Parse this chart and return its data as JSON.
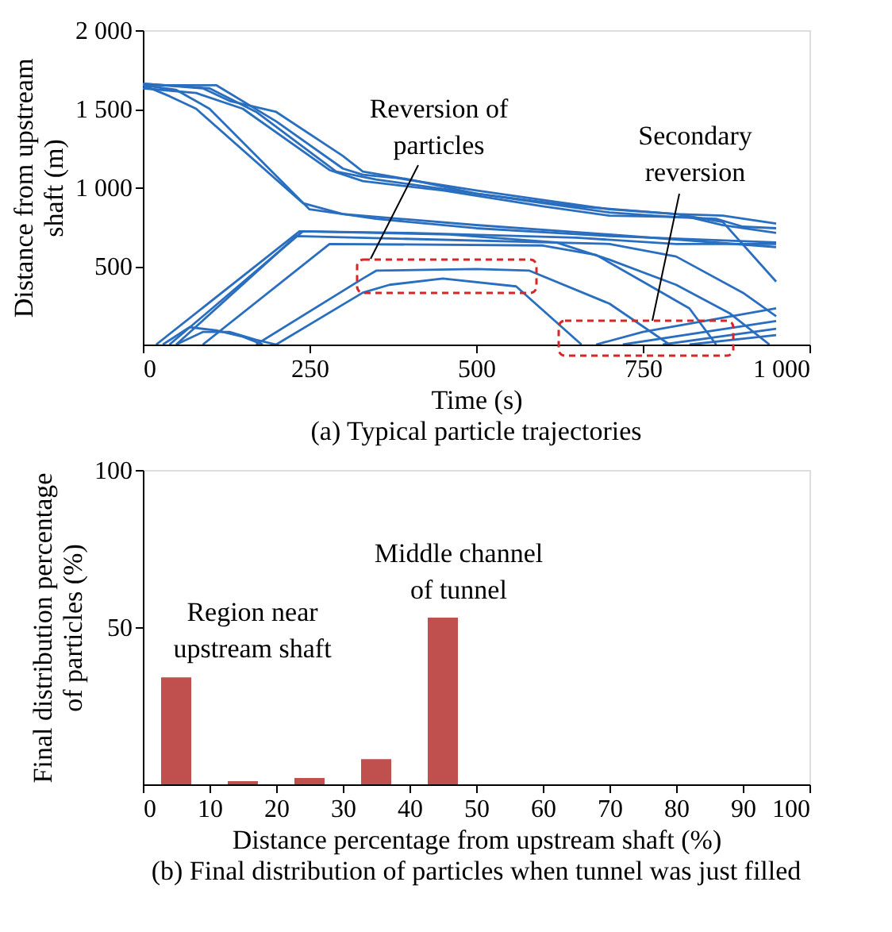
{
  "chart_data": [
    {
      "type": "line",
      "title": "(a) Typical particle trajectories",
      "xlabel": "Time (s)",
      "ylabel": "Distance from upstream\nshaft (m)",
      "xlim": [
        0,
        1000
      ],
      "xticks": [
        0,
        250,
        500,
        750,
        {
          "value": 1000,
          "label": "1 000"
        }
      ],
      "ylim": [
        0,
        2000
      ],
      "yticks": [
        {
          "value": 500,
          "label": "500"
        },
        {
          "value": 1000,
          "label": "1 000"
        },
        {
          "value": 1500,
          "label": "1 500"
        },
        {
          "value": 2000,
          "label": "2 000"
        }
      ],
      "annotations": [
        "Reversion of\nparticles",
        "Secondary\nreversion"
      ],
      "series": [
        {
          "color": "#2a6ebf",
          "x": [
            0,
            110,
            200,
            300,
            330,
            380,
            500,
            600,
            700,
            800,
            870,
            950
          ],
          "values": [
            1650,
            1650,
            1420,
            1120,
            1080,
            1060,
            980,
            920,
            860,
            830,
            820,
            770
          ]
        },
        {
          "color": "#2a6ebf",
          "x": [
            0,
            90,
            130,
            200,
            300,
            330,
            400,
            500,
            600,
            700,
            800,
            860,
            900,
            950
          ],
          "values": [
            1660,
            1630,
            1550,
            1480,
            1200,
            1100,
            1050,
            960,
            900,
            840,
            810,
            800,
            750,
            740
          ]
        },
        {
          "color": "#2a6ebf",
          "x": [
            0,
            80,
            150,
            280,
            330,
            450,
            600,
            700,
            820,
            870,
            950
          ],
          "values": [
            1630,
            1600,
            1500,
            1110,
            1040,
            980,
            880,
            820,
            810,
            760,
            710
          ]
        },
        {
          "color": "#2a6ebf",
          "x": [
            0,
            100,
            170,
            290,
            350,
            500,
            650,
            800,
            870,
            950
          ],
          "values": [
            1660,
            1630,
            1480,
            1100,
            1050,
            960,
            880,
            830,
            780,
            400
          ]
        },
        {
          "color": "#2a6ebf",
          "x": [
            0,
            50,
            100,
            250,
            350,
            500,
            700,
            950
          ],
          "values": [
            1650,
            1620,
            1500,
            860,
            800,
            740,
            690,
            650
          ]
        },
        {
          "color": "#2a6ebf",
          "x": [
            0,
            40,
            80,
            240,
            300,
            500,
            700,
            950
          ],
          "values": [
            1650,
            1580,
            1500,
            900,
            830,
            760,
            700,
            620
          ]
        },
        {
          "color": "#2a6ebf",
          "x": [
            20,
            235,
            400,
            650,
            800,
            950
          ],
          "values": [
            0,
            720,
            710,
            680,
            640,
            640
          ]
        },
        {
          "color": "#2a6ebf",
          "x": [
            40,
            240,
            460,
            620,
            700,
            800,
            880,
            940
          ],
          "values": [
            0,
            720,
            700,
            650,
            540,
            380,
            200,
            0
          ]
        },
        {
          "color": "#2a6ebf",
          "x": [
            50,
            230,
            700,
            800,
            900,
            950
          ],
          "values": [
            0,
            690,
            640,
            560,
            330,
            180
          ]
        },
        {
          "color": "#2a6ebf",
          "x": [
            90,
            280,
            600,
            680,
            750,
            820,
            860
          ],
          "values": [
            0,
            640,
            630,
            570,
            400,
            230,
            0
          ]
        },
        {
          "color": "#2a6ebf",
          "x": [
            170,
            330,
            350,
            500,
            580,
            700,
            790
          ],
          "values": [
            0,
            420,
            470,
            480,
            470,
            260,
            0
          ]
        },
        {
          "color": "#2a6ebf",
          "x": [
            200,
            330,
            370,
            450,
            560,
            658
          ],
          "values": [
            0,
            330,
            380,
            420,
            370,
            0
          ]
        },
        {
          "color": "#2a6ebf",
          "x": [
            680,
            750,
            950
          ],
          "values": [
            0,
            80,
            230
          ]
        },
        {
          "color": "#2a6ebf",
          "x": [
            720,
            950
          ],
          "values": [
            0,
            150
          ]
        },
        {
          "color": "#2a6ebf",
          "x": [
            780,
            950
          ],
          "values": [
            0,
            100
          ]
        },
        {
          "color": "#2a6ebf",
          "x": [
            820,
            950
          ],
          "values": [
            0,
            60
          ]
        },
        {
          "color": "#2a6ebf",
          "x": [
            30,
            70,
            110,
            150,
            180
          ],
          "values": [
            0,
            110,
            90,
            50,
            0
          ]
        },
        {
          "color": "#2a6ebf",
          "x": [
            50,
            90,
            130,
            170,
            200
          ],
          "values": [
            0,
            80,
            80,
            30,
            0
          ]
        }
      ]
    },
    {
      "type": "bar",
      "title": "(b) Final distribution of particles when tunnel was just filled",
      "xlabel": "Distance percentage from upstream shaft (%)",
      "ylabel": "Final distribution percentage\nof particles (%)",
      "x": [
        5,
        15,
        25,
        35,
        45
      ],
      "values": [
        34,
        1,
        2,
        8,
        53
      ],
      "color": "#c0504d",
      "xlim": [
        0,
        100
      ],
      "xticks": [
        0,
        10,
        20,
        30,
        40,
        50,
        60,
        70,
        80,
        90,
        100
      ],
      "ylim": [
        0,
        100
      ],
      "yticks": [
        50,
        100
      ],
      "annotations": [
        "Region near\nupstream shaft",
        "Middle channel\nof tunnel"
      ]
    }
  ]
}
